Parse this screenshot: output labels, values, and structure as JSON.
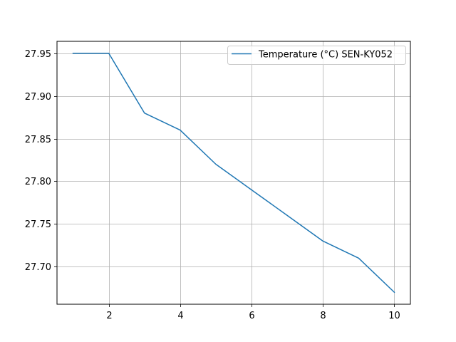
{
  "chart_data": {
    "type": "line",
    "title": "",
    "xlabel": "",
    "ylabel": "",
    "xlim": [
      0.55,
      10.45
    ],
    "ylim": [
      27.656,
      27.964
    ],
    "x_ticks": [
      2,
      4,
      6,
      8,
      10
    ],
    "y_ticks": [
      27.7,
      27.75,
      27.8,
      27.85,
      27.9,
      27.95
    ],
    "x_tick_labels": [
      "2",
      "4",
      "6",
      "8",
      "10"
    ],
    "y_tick_labels": [
      "27.70",
      "27.75",
      "27.80",
      "27.85",
      "27.90",
      "27.95"
    ],
    "grid": true,
    "legend_position": "upper right",
    "series": [
      {
        "name": "Temperature (°C) SEN-KY052",
        "color": "#1f77b4",
        "x": [
          1,
          2,
          3,
          4,
          5,
          6,
          7,
          8,
          9,
          10
        ],
        "y": [
          27.95,
          27.95,
          27.88,
          27.86,
          27.82,
          27.79,
          27.76,
          27.73,
          27.71,
          27.67
        ]
      }
    ]
  }
}
